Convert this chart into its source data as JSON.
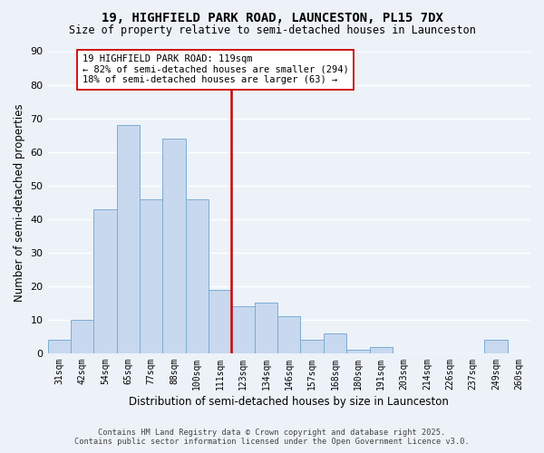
{
  "title": "19, HIGHFIELD PARK ROAD, LAUNCESTON, PL15 7DX",
  "subtitle": "Size of property relative to semi-detached houses in Launceston",
  "xlabel": "Distribution of semi-detached houses by size in Launceston",
  "ylabel": "Number of semi-detached properties",
  "categories": [
    "31sqm",
    "42sqm",
    "54sqm",
    "65sqm",
    "77sqm",
    "88sqm",
    "100sqm",
    "111sqm",
    "123sqm",
    "134sqm",
    "146sqm",
    "157sqm",
    "168sqm",
    "180sqm",
    "191sqm",
    "203sqm",
    "214sqm",
    "226sqm",
    "237sqm",
    "249sqm",
    "260sqm"
  ],
  "values": [
    4,
    10,
    43,
    68,
    46,
    64,
    46,
    19,
    14,
    15,
    11,
    4,
    6,
    1,
    2,
    0,
    0,
    0,
    0,
    4,
    0
  ],
  "bar_color": "#c8d8ee",
  "bar_edge_color": "#7aadd4",
  "vline_x_index": 8,
  "vline_color": "#cc0000",
  "annotation_line1": "19 HIGHFIELD PARK ROAD: 119sqm",
  "annotation_line2": "← 82% of semi-detached houses are smaller (294)",
  "annotation_line3": "18% of semi-detached houses are larger (63) →",
  "ylim": [
    0,
    90
  ],
  "background_color": "#edf2f9",
  "grid_color": "#ffffff",
  "footer_line1": "Contains HM Land Registry data © Crown copyright and database right 2025.",
  "footer_line2": "Contains public sector information licensed under the Open Government Licence v3.0."
}
